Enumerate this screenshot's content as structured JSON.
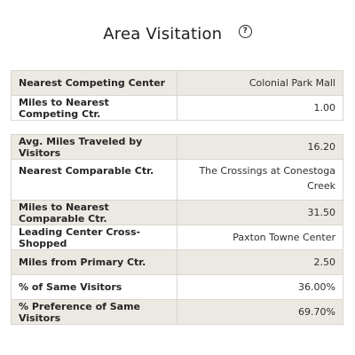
{
  "header": {
    "title": "Area Visitation",
    "help_glyph": "?"
  },
  "table1": {
    "rows": [
      {
        "label": "Nearest Competing Center",
        "value": "Colonial Park Mall"
      },
      {
        "label": "Miles to Nearest Competing Ctr.",
        "value": "1.00"
      }
    ]
  },
  "table2": {
    "rows": [
      {
        "label": "Avg. Miles Traveled by Visitors",
        "value": "16.20"
      },
      {
        "label": "Nearest Comparable Ctr.",
        "value": "The Crossings at Conestoga Creek"
      },
      {
        "label": "Miles to Nearest Comparable Ctr.",
        "value": "31.50"
      },
      {
        "label": "Leading Center Cross-Shopped",
        "value": "Paxton Towne Center"
      },
      {
        "label": "Miles from Primary Ctr.",
        "value": "2.50"
      },
      {
        "label": "% of Same Visitors",
        "value": "36.00%"
      },
      {
        "label": "% Preference of Same Visitors",
        "value": "69.70%"
      }
    ]
  },
  "colors": {
    "row_shade": "#ece9e2",
    "border": "#d9d6cf",
    "text": "#2a2a2a"
  },
  "icons": {
    "help": "help-circle-icon"
  }
}
